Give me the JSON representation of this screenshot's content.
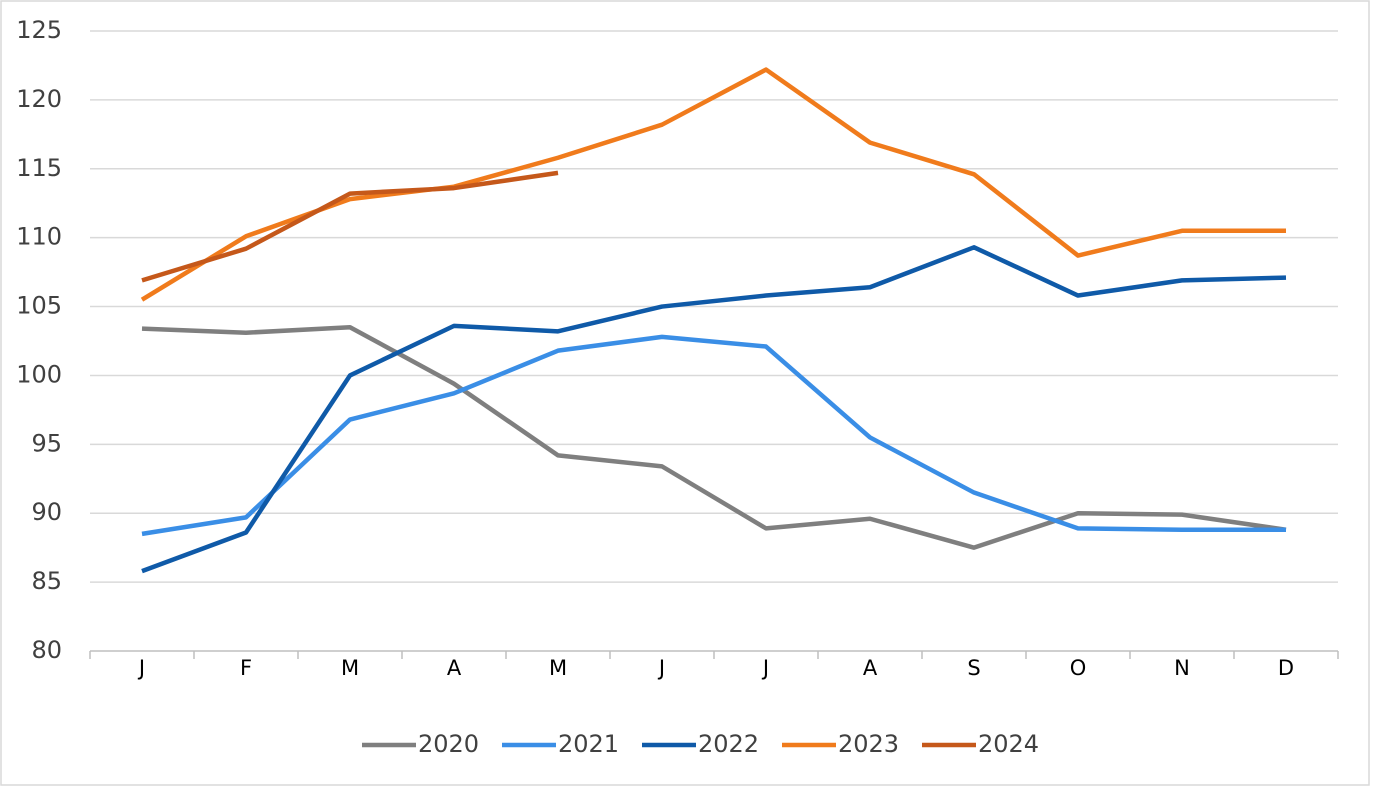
{
  "chart_data": {
    "type": "line",
    "categories": [
      "J",
      "F",
      "M",
      "A",
      "M",
      "J",
      "J",
      "A",
      "S",
      "O",
      "N",
      "D"
    ],
    "series": [
      {
        "name": "2020",
        "color": "#7f7f7f",
        "values": [
          103.4,
          103.1,
          103.5,
          99.4,
          94.2,
          93.4,
          88.9,
          89.6,
          87.5,
          90.0,
          89.9,
          88.8
        ]
      },
      {
        "name": "2021",
        "color": "#3a8ee6",
        "values": [
          88.5,
          89.7,
          96.8,
          98.7,
          101.8,
          102.8,
          102.1,
          95.5,
          91.5,
          88.9,
          88.8,
          88.8
        ]
      },
      {
        "name": "2022",
        "color": "#0f5aa8",
        "values": [
          85.8,
          88.6,
          100,
          103.6,
          103.2,
          105,
          105.8,
          106.4,
          109.3,
          105.8,
          106.9,
          107.1
        ]
      },
      {
        "name": "2023",
        "color": "#f07b1c",
        "values": [
          105.5,
          110.1,
          112.8,
          113.7,
          115.8,
          118.2,
          122.2,
          116.9,
          114.6,
          108.7,
          110.5,
          110.5
        ]
      },
      {
        "name": "2024",
        "color": "#c5581a",
        "values": [
          106.9,
          109.2,
          113.2,
          113.6,
          114.7,
          null,
          null,
          null,
          null,
          null,
          null,
          null
        ]
      }
    ],
    "ylim": [
      80,
      125
    ],
    "yticks": [
      80,
      85,
      90,
      95,
      100,
      105,
      110,
      115,
      120,
      125
    ],
    "grid": true,
    "legend": "bottom"
  }
}
